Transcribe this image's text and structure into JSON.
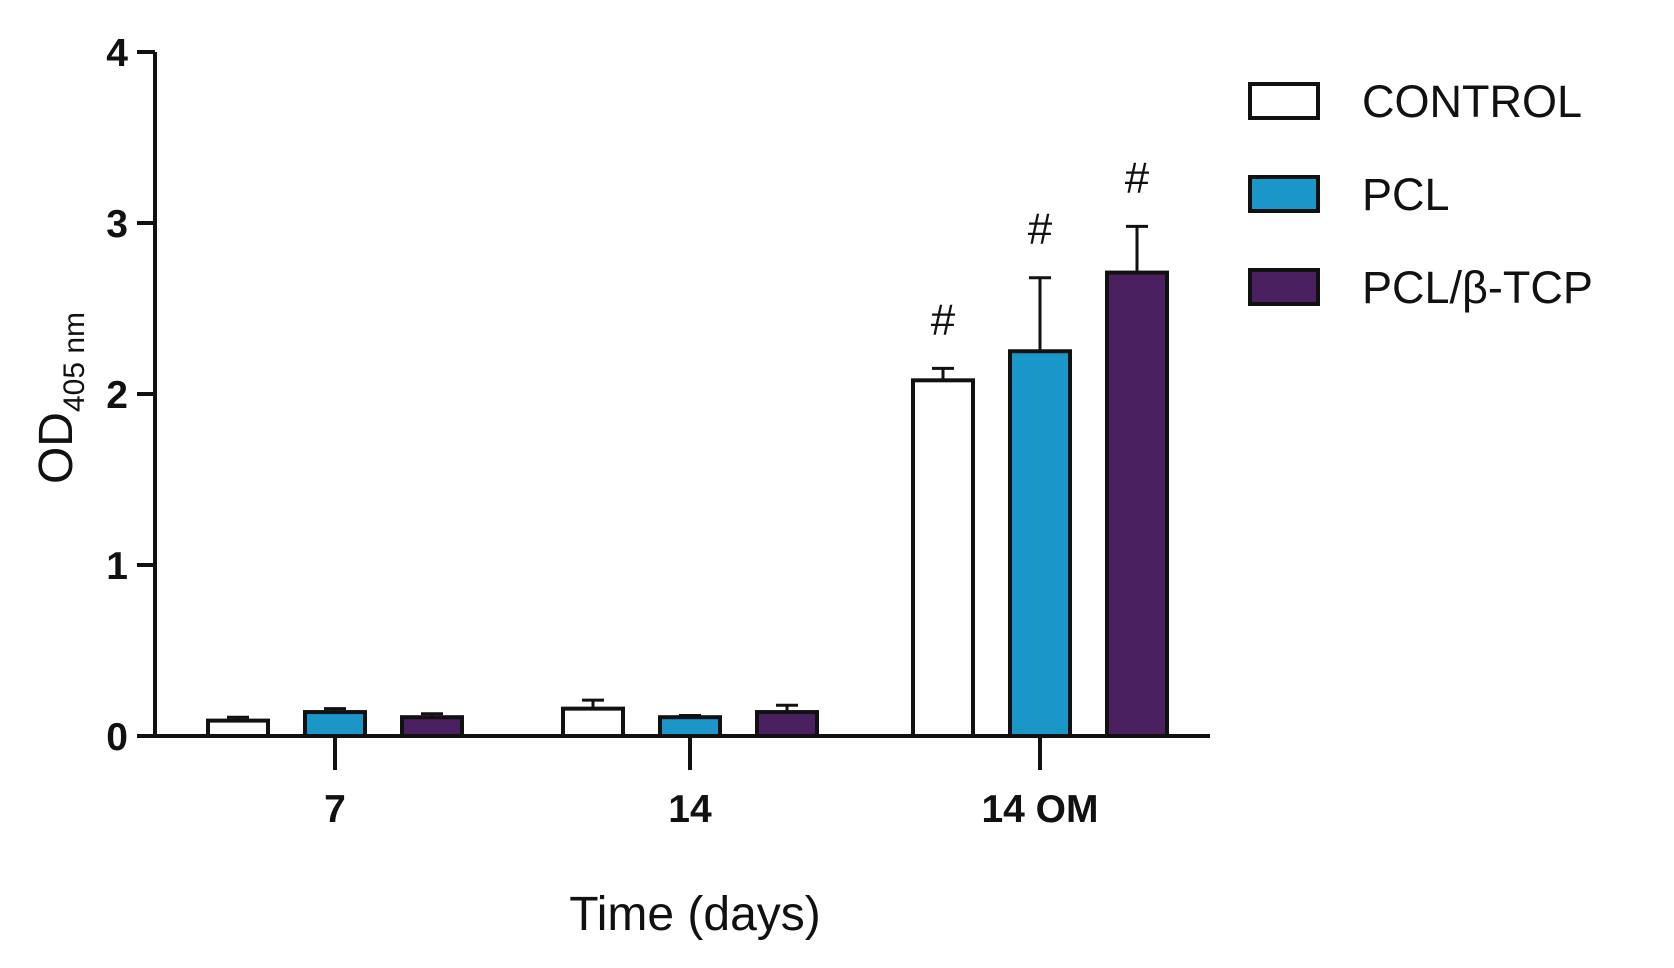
{
  "chart_data": {
    "type": "bar",
    "title": "",
    "xlabel": "Time (days)",
    "ylabel": {
      "main": "OD",
      "subscript": "405 nm"
    },
    "ylim": [
      0,
      4
    ],
    "yticks": [
      0,
      1,
      2,
      3,
      4
    ],
    "categories": [
      "7",
      "14",
      "14 OM"
    ],
    "legend_position": "top-right",
    "grid": false,
    "series": [
      {
        "name": "CONTROL",
        "color": "#ffffff",
        "values": [
          0.09,
          0.16,
          2.08
        ],
        "errors": [
          0.02,
          0.05,
          0.07
        ]
      },
      {
        "name": "PCL",
        "color": "#1a96c8",
        "values": [
          0.14,
          0.11,
          2.25
        ],
        "errors": [
          0.02,
          0.01,
          0.43
        ]
      },
      {
        "name": "PCL/β-TCP",
        "color": "#4a2060",
        "values": [
          0.11,
          0.14,
          2.71
        ],
        "errors": [
          0.02,
          0.04,
          0.27
        ]
      }
    ],
    "annotations": [
      {
        "text": "#",
        "category": "14 OM",
        "series": "CONTROL"
      },
      {
        "text": "#",
        "category": "14 OM",
        "series": "PCL"
      },
      {
        "text": "#",
        "category": "14 OM",
        "series": "PCL/β-TCP"
      }
    ]
  }
}
